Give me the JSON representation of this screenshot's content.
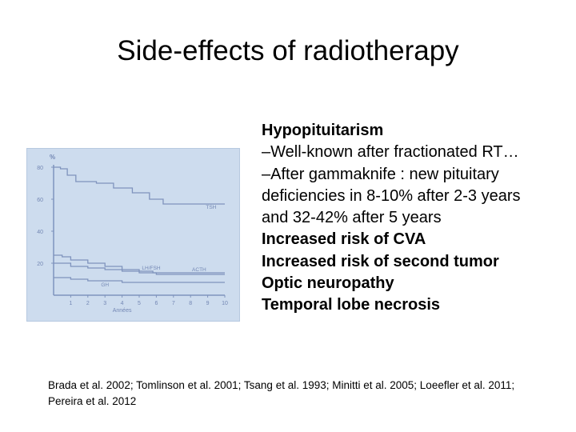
{
  "slide": {
    "title": "Side-effects of radiotherapy",
    "bullets": [
      {
        "text": "Hypopituitarism",
        "style": "bold"
      },
      {
        "text": "–Well-known after fractionated RT…",
        "style": "normal"
      },
      {
        "text": "–After gammaknife : new pituitary deficiencies in 8-10% after 2-3 years and 32-42% after 5 years",
        "style": "normal"
      },
      {
        "text": "Increased risk of CVA",
        "style": "bold"
      },
      {
        "text": "Increased risk of second tumor",
        "style": "bold"
      },
      {
        "text": "Optic neuropathy",
        "style": "bold"
      },
      {
        "text": "Temporal lobe necrosis",
        "style": "bold"
      }
    ],
    "references": "Brada et al. 2002; Tomlinson et al. 2001; Tsang et al. 1993; Minitti et al. 2005; Loeefler et al. 2011; Pereira et al. 2012"
  },
  "chart_data": {
    "type": "line",
    "step": true,
    "title": "",
    "ylabel": "%",
    "xlabel": "Années",
    "xlim": [
      0,
      10
    ],
    "ylim": [
      0,
      80
    ],
    "x_ticks": [
      1,
      2,
      3,
      4,
      5,
      6,
      7,
      8,
      9,
      10
    ],
    "y_ticks": [
      20,
      40,
      60,
      80
    ],
    "grid": false,
    "colors": {
      "line": "#7f93bd",
      "text": "#7387b4",
      "background": "#cddcee"
    },
    "series": [
      {
        "name": "TSH",
        "x": [
          0,
          0.4,
          0.8,
          1.3,
          2.5,
          3.5,
          4.6,
          5.6,
          6.4,
          10
        ],
        "y": [
          80,
          79,
          75,
          71,
          70,
          67,
          64,
          60,
          57,
          57
        ]
      },
      {
        "name": "LH/FSH",
        "x": [
          0,
          0.5,
          1.0,
          2.0,
          3.0,
          4.0,
          5.0,
          5.8,
          10
        ],
        "y": [
          25,
          24,
          22,
          20,
          18,
          16,
          15,
          14,
          14
        ]
      },
      {
        "name": "ACTH",
        "x": [
          0,
          1.0,
          2.0,
          3.0,
          4.0,
          5.0,
          6.0,
          10
        ],
        "y": [
          20,
          18,
          17,
          16,
          15,
          14,
          13,
          13
        ]
      },
      {
        "name": "GH",
        "x": [
          0,
          1.0,
          2.0,
          3.0,
          4.0,
          10
        ],
        "y": [
          11,
          10,
          9,
          9,
          8,
          8
        ]
      }
    ],
    "series_labels": [
      "TSH",
      "LH/FSH",
      "ACTH",
      "GH"
    ]
  }
}
